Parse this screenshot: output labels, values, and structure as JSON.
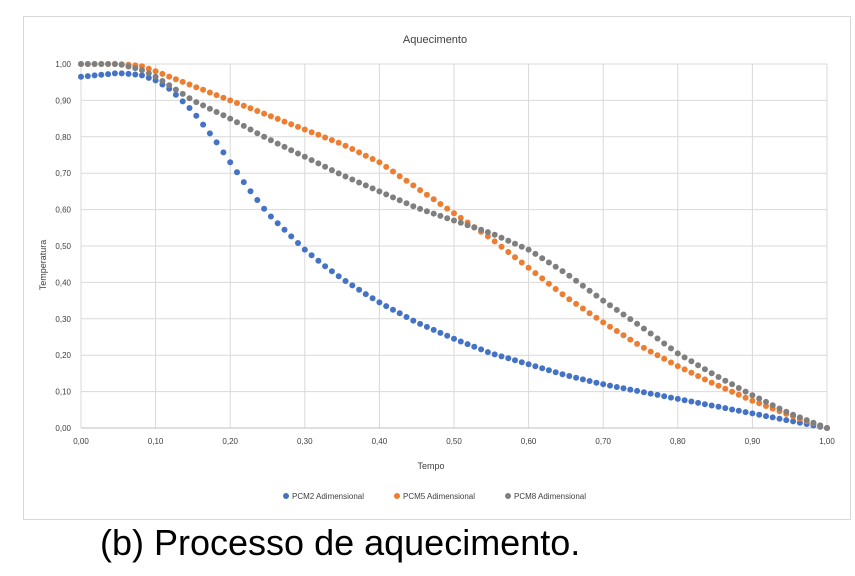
{
  "caption": "(b)  Processo de aquecimento.",
  "chart_data": {
    "type": "scatter",
    "title": "Aquecimento",
    "xlabel": "Tempo",
    "ylabel": "Temperatura",
    "xlim": [
      0,
      1
    ],
    "ylim": [
      0,
      1
    ],
    "x_ticks": [
      "0,00",
      "0,10",
      "0,20",
      "0,30",
      "0,40",
      "0,50",
      "0,60",
      "0,70",
      "0,80",
      "0,90",
      "1,00"
    ],
    "y_ticks": [
      "0,00",
      "0,10",
      "0,20",
      "0,30",
      "0,40",
      "0,50",
      "0,60",
      "0,70",
      "0,80",
      "0,90",
      "1,00"
    ],
    "grid": true,
    "legend_position": "bottom",
    "series": [
      {
        "name": "PCM2 Adimensional",
        "color": "#4472c4",
        "x": [
          0,
          0.05,
          0.08,
          0.1,
          0.12,
          0.15,
          0.18,
          0.2,
          0.22,
          0.25,
          0.28,
          0.3,
          0.33,
          0.35,
          0.38,
          0.4,
          0.45,
          0.5,
          0.55,
          0.6,
          0.65,
          0.7,
          0.75,
          0.8,
          0.85,
          0.9,
          0.95,
          1.0
        ],
        "y": [
          0.965,
          0.975,
          0.97,
          0.955,
          0.93,
          0.87,
          0.79,
          0.73,
          0.67,
          0.59,
          0.53,
          0.49,
          0.44,
          0.41,
          0.37,
          0.345,
          0.29,
          0.245,
          0.205,
          0.175,
          0.145,
          0.12,
          0.1,
          0.08,
          0.06,
          0.04,
          0.02,
          0.0
        ]
      },
      {
        "name": "PCM5 Adimensional",
        "color": "#ed7d31",
        "x": [
          0,
          0.05,
          0.08,
          0.1,
          0.15,
          0.2,
          0.25,
          0.3,
          0.35,
          0.4,
          0.45,
          0.5,
          0.55,
          0.6,
          0.65,
          0.7,
          0.75,
          0.8,
          0.85,
          0.9,
          0.95,
          1.0
        ],
        "y": [
          1.0,
          1.0,
          0.995,
          0.98,
          0.94,
          0.9,
          0.86,
          0.82,
          0.78,
          0.73,
          0.66,
          0.59,
          0.52,
          0.44,
          0.36,
          0.29,
          0.225,
          0.17,
          0.12,
          0.075,
          0.035,
          0.0
        ]
      },
      {
        "name": "PCM8 Adimensional",
        "color": "#7f7f7f",
        "x": [
          0,
          0.05,
          0.08,
          0.1,
          0.15,
          0.2,
          0.25,
          0.3,
          0.35,
          0.4,
          0.45,
          0.5,
          0.55,
          0.6,
          0.65,
          0.7,
          0.75,
          0.8,
          0.85,
          0.9,
          0.95,
          1.0
        ],
        "y": [
          1.0,
          1.0,
          0.985,
          0.965,
          0.9,
          0.85,
          0.795,
          0.745,
          0.695,
          0.65,
          0.605,
          0.57,
          0.535,
          0.49,
          0.425,
          0.35,
          0.28,
          0.205,
          0.145,
          0.09,
          0.04,
          0.0
        ]
      }
    ]
  }
}
